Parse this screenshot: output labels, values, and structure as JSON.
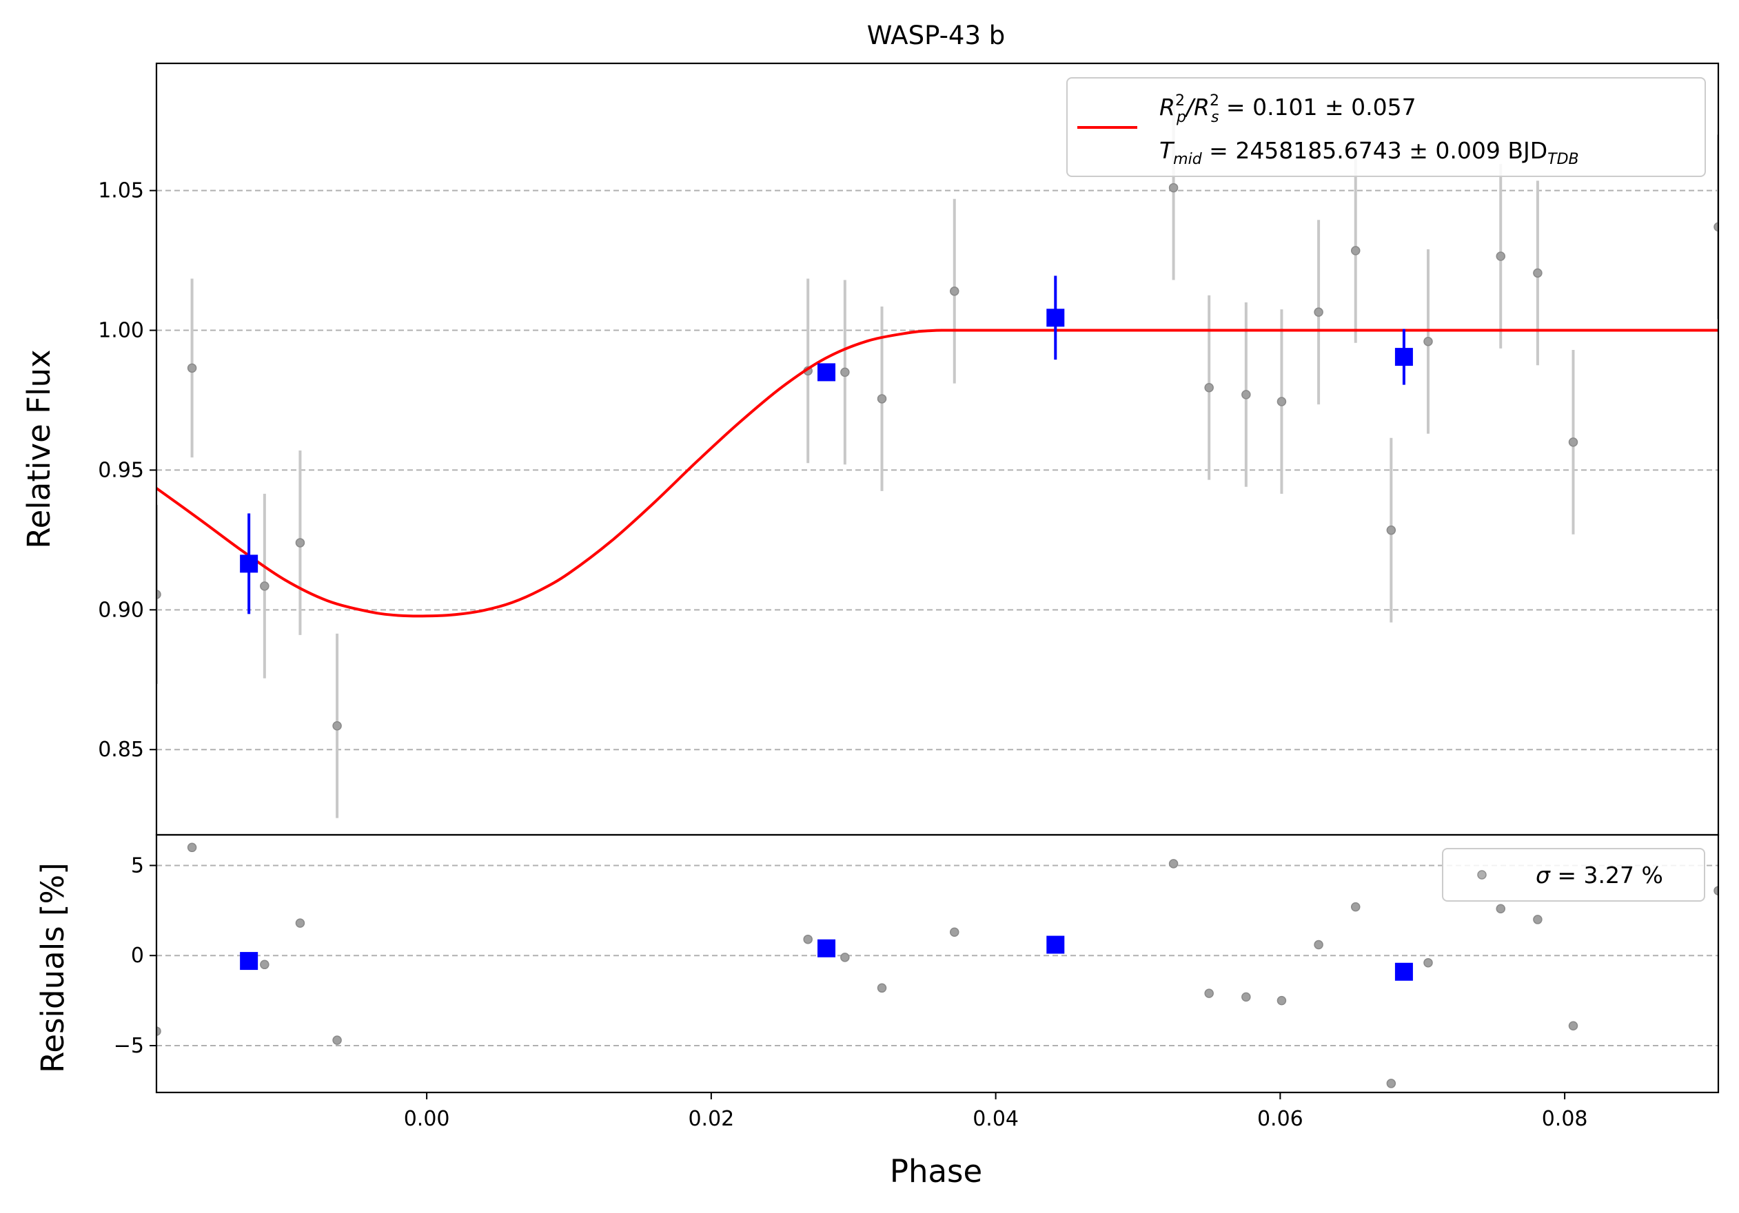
{
  "chart_data": {
    "type": "scatter",
    "title": "WASP-43 b",
    "xlabel": "Phase",
    "xlim": [
      -0.019,
      0.0908
    ],
    "x_ticks": [
      "0.00",
      "0.02",
      "0.04",
      "0.06",
      "0.08"
    ],
    "x_tick_values": [
      0.0,
      0.02,
      0.04,
      0.06,
      0.08
    ],
    "grid": "horizontal dashed",
    "top_panel": {
      "ylabel": "Relative Flux",
      "ylim": [
        0.8195,
        1.0955
      ],
      "y_ticks": [
        "0.85",
        "0.90",
        "0.95",
        "1.00",
        "1.05"
      ],
      "y_tick_values": [
        0.85,
        0.9,
        0.95,
        1.0,
        1.05
      ],
      "legend_position": "upper-right",
      "legend": {
        "line1": {
          "pre": "R",
          "sub1": "p",
          "sup1": "2",
          "slash": "/R",
          "sub2": "s",
          "sup2": "2",
          "rest": " = 0.101 ± 0.057"
        },
        "line2": {
          "pre": "T",
          "sub1": "mid",
          "rest": " = 2458185.6743 ± 0.009 BJD",
          "sub2": "TDB"
        },
        "color": "#ff0000"
      },
      "model": {
        "name": "transit model",
        "color": "#ff0000",
        "x": [
          -0.019,
          -0.016,
          -0.013,
          -0.01,
          -0.007,
          -0.004,
          -0.002,
          0.0,
          0.002,
          0.004,
          0.006,
          0.008,
          0.01,
          0.013,
          0.016,
          0.019,
          0.022,
          0.025,
          0.028,
          0.031,
          0.034,
          0.0355,
          0.0367,
          0.04,
          0.05,
          0.06,
          0.07,
          0.08,
          0.0908
        ],
        "y": [
          0.9435,
          0.9325,
          0.9212,
          0.9108,
          0.9033,
          0.8993,
          0.898,
          0.8978,
          0.8983,
          0.8998,
          0.9026,
          0.9071,
          0.9131,
          0.9247,
          0.9384,
          0.9531,
          0.9671,
          0.9798,
          0.9899,
          0.9962,
          0.9992,
          0.9999,
          1.0,
          1.0,
          1.0,
          1.0,
          1.0,
          1.0,
          1.0
        ]
      },
      "raw_points": {
        "color": "#808080",
        "x": [
          -0.019,
          -0.0165,
          -0.0114,
          -0.0089,
          -0.0063,
          0.0268,
          0.0294,
          0.032,
          0.0371,
          0.0525,
          0.055,
          0.0576,
          0.0601,
          0.0627,
          0.0653,
          0.0678,
          0.0704,
          0.0755,
          0.0781,
          0.0806,
          0.0908
        ],
        "y": [
          0.9055,
          0.9865,
          0.9085,
          0.924,
          0.8585,
          0.9855,
          0.985,
          0.9755,
          1.014,
          1.051,
          0.9795,
          0.977,
          0.9745,
          1.0065,
          1.0285,
          0.9285,
          0.996,
          1.0265,
          1.0205,
          0.96,
          1.037
        ],
        "err": [
          0.032,
          0.032,
          0.033,
          0.033,
          0.033,
          0.033,
          0.033,
          0.033,
          0.033,
          0.033,
          0.033,
          0.033,
          0.033,
          0.033,
          0.033,
          0.033,
          0.033,
          0.033,
          0.033,
          0.033,
          0.033
        ]
      },
      "binned_points": {
        "color": "#0000ff",
        "x": [
          -0.0125,
          0.0281,
          0.0442,
          0.0687
        ],
        "y": [
          0.9165,
          0.985,
          1.0045,
          0.9905
        ],
        "err": [
          0.018,
          0.003,
          0.015,
          0.01
        ]
      }
    },
    "bottom_panel": {
      "ylabel": "Residuals [%]",
      "ylim": [
        -7.6,
        6.7
      ],
      "y_ticks": [
        "−5",
        "0",
        "5"
      ],
      "y_tick_values": [
        -5,
        0,
        5
      ],
      "legend_position": "upper-right",
      "legend": {
        "sigma": "σ",
        "rest": " = 3.27 %"
      },
      "raw_points": {
        "color": "#808080",
        "x": [
          -0.019,
          -0.0165,
          -0.0114,
          -0.0089,
          -0.0063,
          0.0268,
          0.0294,
          0.032,
          0.0371,
          0.0525,
          0.055,
          0.0576,
          0.0601,
          0.0627,
          0.0653,
          0.0678,
          0.0704,
          0.0755,
          0.0781,
          0.0806,
          0.0908
        ],
        "y": [
          -4.2,
          6.0,
          -0.5,
          1.8,
          -4.7,
          0.9,
          -0.1,
          -1.8,
          1.3,
          5.1,
          -2.1,
          -2.3,
          -2.5,
          0.6,
          2.7,
          -7.1,
          -0.4,
          2.6,
          2.0,
          -3.9,
          3.6
        ]
      },
      "binned_points": {
        "color": "#0000ff",
        "x": [
          -0.0125,
          0.0281,
          0.0442,
          0.0687
        ],
        "y": [
          -0.3,
          0.4,
          0.6,
          -0.9
        ]
      }
    }
  }
}
